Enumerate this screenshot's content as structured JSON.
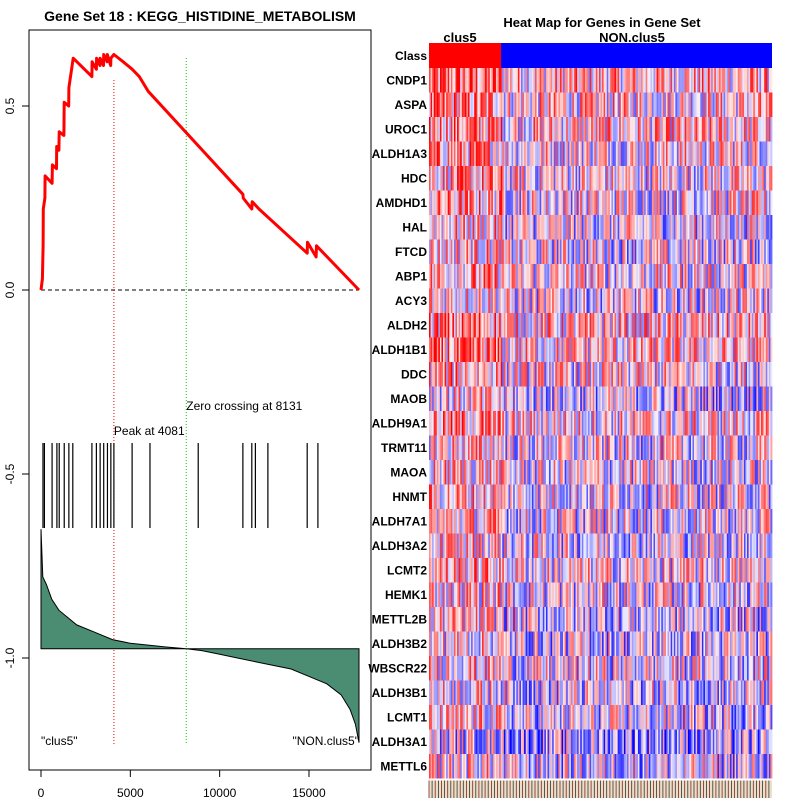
{
  "chart_data": [
    {
      "type": "line",
      "title": "Gene Set  18 : KEGG_HISTIDINE_METABOLISM",
      "xlim": [
        0,
        17800
      ],
      "ylim": [
        -1.3,
        0.7
      ],
      "x_ticks": [
        0,
        5000,
        10000,
        15000
      ],
      "x_tick_labels": [
        "0",
        "5000",
        "10000",
        "15000"
      ],
      "y_ticks": [
        -1.0,
        -0.5,
        0.0,
        0.5
      ],
      "y_tick_labels": [
        "-1.0",
        "-0.5",
        "0.0",
        "0.5"
      ],
      "series": [
        {
          "name": "running enrichment score",
          "color": "#ff0000",
          "x": [
            0,
            80,
            120,
            130,
            220,
            230,
            620,
            640,
            870,
            880,
            1000,
            1020,
            1280,
            1300,
            1550,
            1560,
            1800,
            2850,
            2860,
            3100,
            3110,
            3300,
            3310,
            3500,
            3510,
            3700,
            3710,
            3900,
            3910,
            4081,
            4600,
            5100,
            5500,
            6000,
            11300,
            11320,
            11800,
            11820,
            12200,
            14900,
            14920,
            15400,
            15420,
            17800
          ],
          "y": [
            0.0,
            0.03,
            0.12,
            0.22,
            0.25,
            0.31,
            0.29,
            0.34,
            0.33,
            0.39,
            0.38,
            0.43,
            0.42,
            0.51,
            0.5,
            0.55,
            0.63,
            0.58,
            0.62,
            0.6,
            0.63,
            0.61,
            0.63,
            0.61,
            0.64,
            0.62,
            0.64,
            0.61,
            0.63,
            0.64,
            0.62,
            0.6,
            0.58,
            0.54,
            0.26,
            0.25,
            0.22,
            0.24,
            0.22,
            0.1,
            0.13,
            0.09,
            0.12,
            0.0
          ]
        }
      ],
      "peak": {
        "x": 4081,
        "label": "Peak at 4081"
      },
      "zero_crossing": {
        "x": 8131,
        "label": "Zero crossing at 8131"
      },
      "hits": [
        110,
        190,
        620,
        890,
        1020,
        1300,
        1560,
        1780,
        2850,
        3100,
        3310,
        3510,
        3720,
        3910,
        4081,
        5100,
        6100,
        8800,
        11300,
        11800,
        12000,
        12700,
        14900,
        15500
      ],
      "metric_curve": {
        "x": [
          0,
          100,
          300,
          600,
          1000,
          2000,
          3000,
          4000,
          5000,
          6000,
          7000,
          8131,
          9000,
          10000,
          11000,
          12000,
          13000,
          14000,
          15000,
          16000,
          16800,
          17300,
          17600,
          17800
        ],
        "y": [
          -0.65,
          -0.78,
          -0.8,
          -0.84,
          -0.87,
          -0.91,
          -0.93,
          -0.95,
          -0.96,
          -0.965,
          -0.97,
          -0.975,
          -0.98,
          -0.99,
          -1.0,
          -1.01,
          -1.02,
          -1.03,
          -1.05,
          -1.07,
          -1.1,
          -1.14,
          -1.18,
          -1.23
        ],
        "baseline": -0.975,
        "fill_color": "#4a8d73"
      },
      "class_labels": [
        "\"clus5\"",
        "\"NON.clus5\""
      ]
    },
    {
      "type": "heatmap",
      "title": "Heat Map for Genes in Gene Set",
      "group_labels": [
        "clus5",
        "NON.clus5"
      ],
      "group_fraction": [
        0.21,
        0.79
      ],
      "group_colors": [
        "#ff0000",
        "#0000ff"
      ],
      "class_row_label": "Class",
      "rows": [
        "CNDP1",
        "ASPA",
        "UROC1",
        "ALDH1A3",
        "HDC",
        "AMDHD1",
        "HAL",
        "FTCD",
        "ABP1",
        "ACY3",
        "ALDH2",
        "ALDH1B1",
        "DDC",
        "MAOB",
        "ALDH9A1",
        "TRMT11",
        "MAOA",
        "HNMT",
        "ALDH7A1",
        "ALDH3A2",
        "LCMT2",
        "HEMK1",
        "METTL2B",
        "ALDH3B2",
        "WBSCR22",
        "ALDH3B1",
        "LCMT1",
        "ALDH3A1",
        "METTL6"
      ],
      "row_redness": [
        0.65,
        0.6,
        0.62,
        0.58,
        0.55,
        0.55,
        0.5,
        0.5,
        0.55,
        0.5,
        0.62,
        0.6,
        0.55,
        0.45,
        0.58,
        0.5,
        0.5,
        0.52,
        0.5,
        0.5,
        0.55,
        0.5,
        0.45,
        0.45,
        0.5,
        0.45,
        0.45,
        0.35,
        0.45
      ],
      "col_count": 220,
      "palette": {
        "high": "#ff0000",
        "low": "#0000ff",
        "mid": "#f2eef4"
      }
    }
  ]
}
